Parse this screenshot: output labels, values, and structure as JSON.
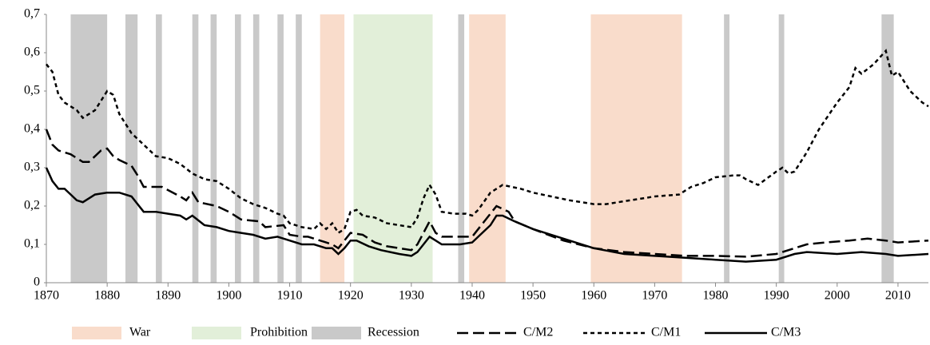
{
  "chart_data": {
    "type": "line",
    "xlim": [
      1870,
      2015
    ],
    "xticks": [
      1870,
      1880,
      1890,
      1900,
      1910,
      1920,
      1930,
      1940,
      1950,
      1960,
      1970,
      1980,
      1990,
      2000,
      2010
    ],
    "ylim": [
      0,
      0.7
    ],
    "yticks": [
      0,
      {
        "value": 0.1,
        "label": "0,1"
      },
      {
        "value": 0.2,
        "label": "0,2"
      },
      {
        "value": 0.3,
        "label": "0,3"
      },
      {
        "value": 0.4,
        "label": "0,4"
      },
      {
        "value": 0.5,
        "label": "0,5"
      },
      {
        "value": 0.6,
        "label": "0,6"
      },
      {
        "value": 0.7,
        "label": "0,7"
      }
    ],
    "bands": [
      {
        "name": "War",
        "color": "#f9dccb",
        "ranges": [
          [
            1915,
            1919
          ],
          [
            1939.5,
            1945.5
          ],
          [
            1959.5,
            1974.5
          ]
        ]
      },
      {
        "name": "Prohibition",
        "color": "#e2efd9",
        "ranges": [
          [
            1920.5,
            1933.5
          ]
        ]
      },
      {
        "name": "Recession",
        "color": "#c9c9c9",
        "ranges": [
          [
            1874,
            1880
          ],
          [
            1883,
            1885
          ],
          [
            1888,
            1889
          ],
          [
            1894,
            1895
          ],
          [
            1897,
            1898
          ],
          [
            1901,
            1902
          ],
          [
            1904,
            1905
          ],
          [
            1908,
            1909
          ],
          [
            1911,
            1912
          ],
          [
            1937.7,
            1938.7
          ],
          [
            1981.4,
            1982.3
          ],
          [
            1990.4,
            1991.3
          ],
          [
            2007.3,
            2009.3
          ]
        ]
      }
    ],
    "series": [
      {
        "name": "C/M2",
        "color": "#000000",
        "dash": "14,6",
        "x": [
          1870,
          1871,
          1872,
          1874,
          1876,
          1877,
          1879,
          1880,
          1881,
          1882,
          1884,
          1885,
          1886,
          1889,
          1892,
          1893,
          1894,
          1895,
          1898,
          1900,
          1902,
          1905,
          1906,
          1909,
          1910,
          1912,
          1913,
          1916,
          1917,
          1918,
          1919,
          1920,
          1922,
          1924,
          1926,
          1928,
          1930,
          1931,
          1933,
          1934,
          1935,
          1938,
          1940,
          1941,
          1943,
          1944,
          1946,
          1947,
          1950,
          1955,
          1960,
          1965,
          1970,
          1975,
          1980,
          1985,
          1990,
          1993,
          1995,
          1998,
          2002,
          2005,
          2008,
          2010,
          2015
        ],
        "values": [
          0.4,
          0.36,
          0.345,
          0.335,
          0.315,
          0.315,
          0.345,
          0.35,
          0.33,
          0.32,
          0.305,
          0.28,
          0.25,
          0.25,
          0.225,
          0.215,
          0.235,
          0.21,
          0.2,
          0.185,
          0.165,
          0.16,
          0.145,
          0.15,
          0.125,
          0.12,
          0.12,
          0.105,
          0.1,
          0.09,
          0.11,
          0.13,
          0.125,
          0.105,
          0.095,
          0.09,
          0.085,
          0.1,
          0.16,
          0.13,
          0.12,
          0.12,
          0.12,
          0.14,
          0.18,
          0.2,
          0.185,
          0.16,
          0.14,
          0.11,
          0.09,
          0.08,
          0.075,
          0.07,
          0.07,
          0.068,
          0.075,
          0.09,
          0.1,
          0.105,
          0.11,
          0.115,
          0.11,
          0.105,
          0.11
        ]
      },
      {
        "name": "C/M1",
        "color": "#000000",
        "dash": "5,4",
        "x": [
          1870,
          1871,
          1872,
          1873,
          1875,
          1876,
          1878,
          1880,
          1881,
          1882,
          1884,
          1886,
          1888,
          1890,
          1892,
          1894,
          1896,
          1898,
          1900,
          1902,
          1904,
          1906,
          1908,
          1909,
          1910,
          1912,
          1914,
          1915,
          1916,
          1917,
          1918,
          1919,
          1920,
          1921,
          1922,
          1924,
          1926,
          1928,
          1930,
          1931,
          1932,
          1933,
          1934,
          1935,
          1937,
          1939,
          1940,
          1941,
          1943,
          1945,
          1948,
          1950,
          1953,
          1956,
          1960,
          1962,
          1966,
          1970,
          1974,
          1976,
          1978,
          1980,
          1983,
          1984,
          1985,
          1987,
          1990,
          1991,
          1992,
          1993,
          1995,
          1997,
          2000,
          2002,
          2003,
          2004,
          2006,
          2008,
          2009,
          2010,
          2012,
          2014,
          2015
        ],
        "values": [
          0.57,
          0.55,
          0.49,
          0.47,
          0.45,
          0.43,
          0.45,
          0.5,
          0.49,
          0.44,
          0.39,
          0.36,
          0.33,
          0.325,
          0.31,
          0.285,
          0.27,
          0.265,
          0.245,
          0.22,
          0.205,
          0.195,
          0.18,
          0.175,
          0.155,
          0.145,
          0.14,
          0.155,
          0.14,
          0.155,
          0.13,
          0.14,
          0.185,
          0.19,
          0.175,
          0.17,
          0.155,
          0.15,
          0.145,
          0.17,
          0.22,
          0.255,
          0.23,
          0.185,
          0.18,
          0.18,
          0.175,
          0.19,
          0.235,
          0.255,
          0.245,
          0.235,
          0.225,
          0.215,
          0.205,
          0.205,
          0.215,
          0.225,
          0.23,
          0.25,
          0.26,
          0.275,
          0.28,
          0.28,
          0.27,
          0.255,
          0.29,
          0.3,
          0.285,
          0.29,
          0.34,
          0.4,
          0.47,
          0.51,
          0.56,
          0.545,
          0.57,
          0.605,
          0.54,
          0.55,
          0.5,
          0.47,
          0.46
        ]
      },
      {
        "name": "C/M3",
        "color": "#000000",
        "dash": "none",
        "x": [
          1870,
          1871,
          1872,
          1873,
          1875,
          1876,
          1878,
          1880,
          1882,
          1884,
          1886,
          1888,
          1890,
          1892,
          1893,
          1894,
          1896,
          1898,
          1900,
          1902,
          1904,
          1906,
          1908,
          1910,
          1912,
          1914,
          1916,
          1917,
          1918,
          1919,
          1920,
          1921,
          1923,
          1925,
          1928,
          1930,
          1931,
          1932,
          1933,
          1934,
          1935,
          1938,
          1940,
          1941,
          1943,
          1944,
          1945,
          1947,
          1950,
          1955,
          1960,
          1965,
          1970,
          1975,
          1980,
          1985,
          1990,
          1993,
          1995,
          2000,
          2004,
          2008,
          2010,
          2015
        ],
        "values": [
          0.3,
          0.265,
          0.245,
          0.245,
          0.215,
          0.21,
          0.23,
          0.235,
          0.235,
          0.225,
          0.185,
          0.185,
          0.18,
          0.175,
          0.165,
          0.175,
          0.15,
          0.145,
          0.135,
          0.13,
          0.125,
          0.115,
          0.12,
          0.11,
          0.1,
          0.1,
          0.09,
          0.09,
          0.075,
          0.09,
          0.11,
          0.11,
          0.095,
          0.085,
          0.075,
          0.07,
          0.08,
          0.1,
          0.12,
          0.11,
          0.1,
          0.1,
          0.105,
          0.12,
          0.15,
          0.175,
          0.175,
          0.16,
          0.14,
          0.115,
          0.09,
          0.075,
          0.07,
          0.065,
          0.06,
          0.055,
          0.06,
          0.075,
          0.08,
          0.075,
          0.08,
          0.075,
          0.07,
          0.075
        ]
      }
    ]
  }
}
